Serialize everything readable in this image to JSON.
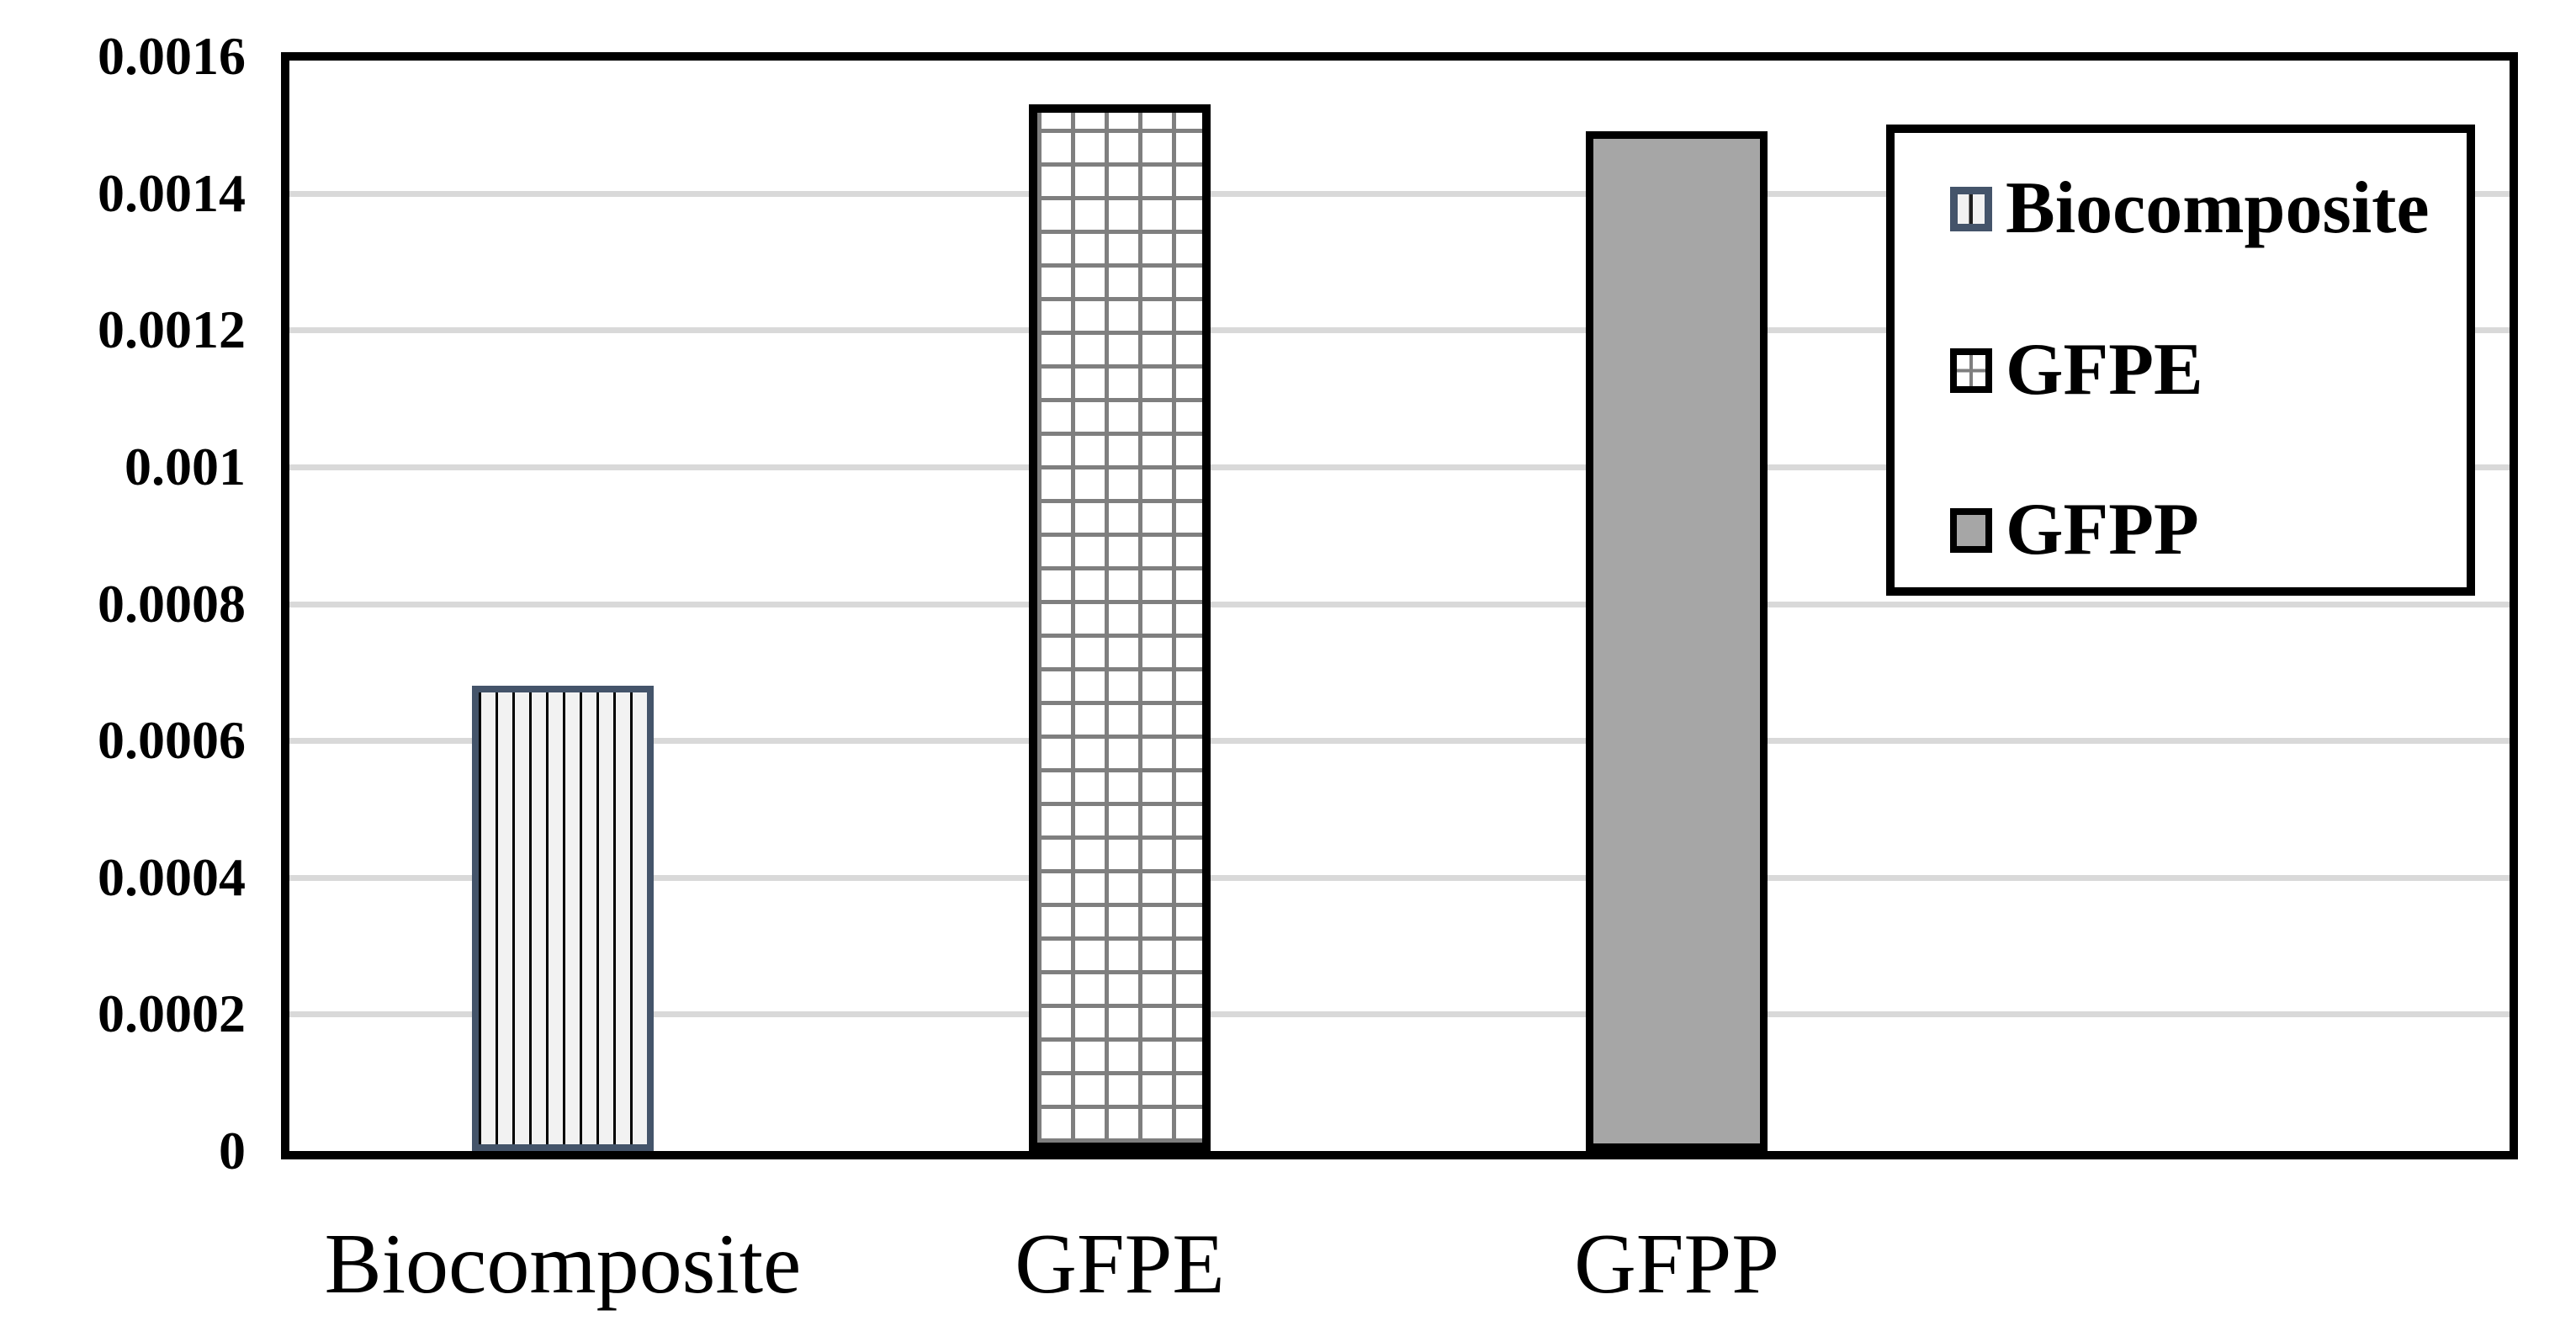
{
  "chart_data": {
    "type": "bar",
    "title": "",
    "xlabel": "",
    "ylabel": "",
    "categories": [
      "Biocomposite",
      "GFPE",
      "GFPP"
    ],
    "values": [
      0.00068,
      0.00153,
      0.00149
    ],
    "ylim": [
      0,
      0.0016
    ],
    "ytick_step": 0.0002,
    "ytick_labels": [
      "0",
      "0.0002",
      "0.0004",
      "0.0006",
      "0.0008",
      "0.001",
      "0.0012",
      "0.0014",
      "0.0016"
    ],
    "grid": true,
    "gridline_color": "#D9D9D9",
    "plot_border_color": "#000000",
    "legend": {
      "position": "top-right",
      "entries": [
        {
          "label": "Biocomposite",
          "pattern": "vertical-stripes",
          "fill": "#F2F2F2",
          "stripe": "#000000",
          "border": "#44546A"
        },
        {
          "label": "GFPE",
          "pattern": "grid",
          "fill": "#FFFFFF",
          "stripe": "#7F7F7F",
          "border": "#000000"
        },
        {
          "label": "GFPP",
          "pattern": "solid",
          "fill": "#A6A6A6",
          "stripe": "#A6A6A6",
          "border": "#000000"
        }
      ]
    }
  }
}
